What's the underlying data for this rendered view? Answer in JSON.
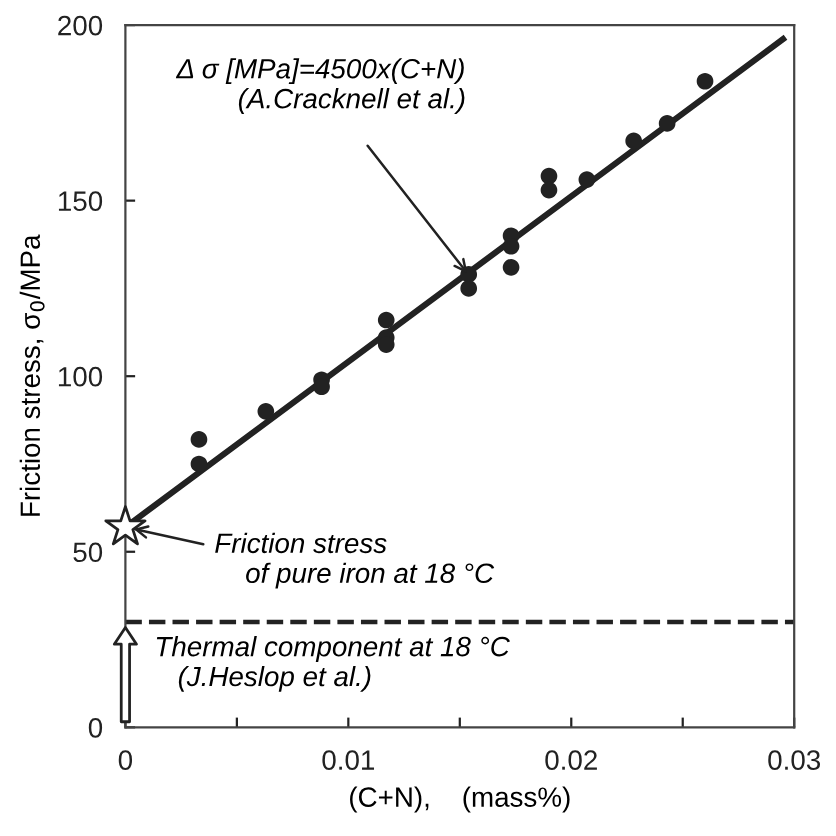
{
  "chart_data": {
    "type": "scatter",
    "xlabel": "(C+N),    (mass%)",
    "ylabel": "Friction stress, σ$_{0}$/MPa",
    "xlim": [
      0,
      0.03
    ],
    "ylim": [
      0,
      200
    ],
    "xticks": [
      0,
      {
        "value": 0.005,
        "label": null
      },
      0.01,
      {
        "value": 0.015,
        "label": null
      },
      0.02,
      {
        "value": 0.025,
        "label": null
      },
      0.03
    ],
    "yticks": [
      0,
      50,
      100,
      150,
      200
    ],
    "grid": false,
    "series": [
      {
        "marker": "circle",
        "color": "#222222",
        "x": [
          0.0033,
          0.0033,
          0.0063,
          0.0088,
          0.0088,
          0.0117,
          0.0117,
          0.0117,
          0.0154,
          0.0154,
          0.0173,
          0.0173,
          0.0173,
          0.019,
          0.019,
          0.0207,
          0.0228,
          0.0243,
          0.026
        ],
        "values": [
          82,
          75,
          90,
          99,
          97,
          116,
          111,
          109,
          129,
          125,
          140,
          137,
          131,
          157,
          153,
          156,
          167,
          172,
          184
        ]
      },
      {
        "type": "line",
        "marker": "none",
        "color": "#222222",
        "x": [
          0,
          0.0295
        ],
        "values": [
          57,
          196
        ]
      },
      {
        "type": "scatter",
        "marker": "star",
        "color": "#ffffff",
        "x": [
          0
        ],
        "values": [
          57
        ]
      }
    ],
    "ref_lines": [
      {
        "axis": "y",
        "value": 30,
        "label": "Thermal component at 18 °C\n   (J.Heslop et al.)",
        "line_style": "dashed",
        "color": "#222222"
      }
    ],
    "annotations": [
      {
        "text": "Δ σ [MPa]=4500x(C+N)\n        (A.Cracknell et al.)",
        "x": 0.0155,
        "y": 128
      },
      {
        "text": "Friction stress\n    of pure iron at 18 °C",
        "x": 0,
        "y": 57
      }
    ]
  }
}
